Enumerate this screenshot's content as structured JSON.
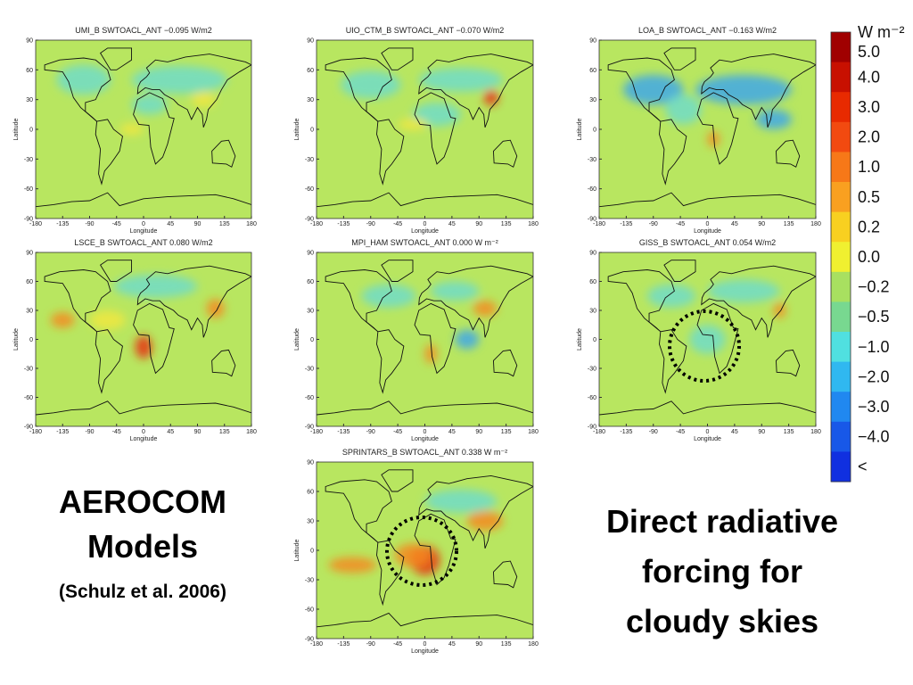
{
  "panels": [
    {
      "title": "UMI_B SWTOACL_ANT −0.095 W/m2"
    },
    {
      "title": "UIO_CTM_B SWTOACL_ANT −0.070 W/m2"
    },
    {
      "title": "LOA_B SWTOACL_ANT −0.163 W/m2"
    },
    {
      "title": "LSCE_B SWTOACL_ANT 0.080 W/m2"
    },
    {
      "title": "MPI_HAM SWTOACL_ANT 0.000 W m⁻²"
    },
    {
      "title": "GISS_B SWTOACL_ANT 0.054 W/m2"
    },
    {
      "title": "SPRINTARS_B SWTOACL_ANT 0.338 W m⁻²"
    }
  ],
  "axes": {
    "x_label": "Longitude",
    "y_label": "Latitude",
    "x_ticks": [
      "-180",
      "-135",
      "-90",
      "-45",
      "0",
      "45",
      "90",
      "135",
      "180"
    ],
    "y_ticks": [
      "90",
      "60",
      "30",
      "0",
      "-30",
      "-60",
      "-90"
    ]
  },
  "colorbar": {
    "unit": "W m⁻²",
    "labels": [
      "5.0",
      "4.0",
      "3.0",
      "2.0",
      "1.0",
      "0.5",
      "0.2",
      "0.0",
      "−0.2",
      "−0.5",
      "−1.0",
      "−2.0",
      "−3.0",
      "−4.0",
      "<"
    ],
    "colors": [
      "#a00000",
      "#c81000",
      "#e82a00",
      "#f24a10",
      "#f77818",
      "#f9a020",
      "#f8d020",
      "#f0f030",
      "#a8e060",
      "#78d890",
      "#50e0e0",
      "#30b8f0",
      "#2088f0",
      "#1858e8",
      "#1030e0"
    ]
  },
  "left_text": {
    "line1": "AEROCOM",
    "line2": "Models",
    "line3": "(Schulz et al. 2006)"
  },
  "right_text": {
    "line1": "Direct radiative",
    "line2": "forcing for",
    "line3": "cloudy skies"
  }
}
